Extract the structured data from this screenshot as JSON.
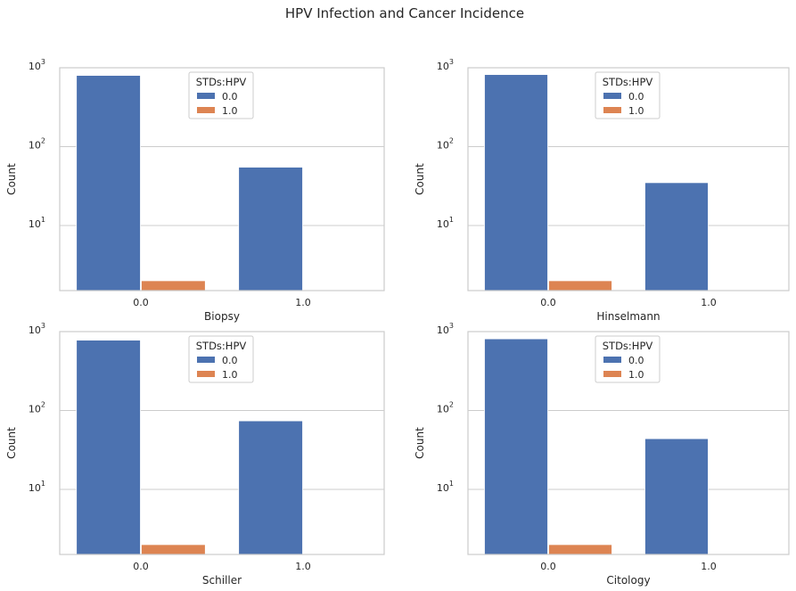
{
  "figure": {
    "title": "HPV Infection and Cancer Incidence"
  },
  "chart_data": [
    {
      "type": "bar",
      "xlabel": "Biopsy",
      "ylabel": "Count",
      "yscale": "log",
      "ylim": [
        1.5,
        1000
      ],
      "ytick_base": "10",
      "yticks": [
        {
          "value": 10,
          "exp": "1"
        },
        {
          "value": 100,
          "exp": "2"
        },
        {
          "value": 1000,
          "exp": "3"
        }
      ],
      "grid": true,
      "categories": [
        "0.0",
        "1.0"
      ],
      "legend": {
        "title": "STDs:HPV",
        "position": "upper center"
      },
      "series": [
        {
          "name": "0.0",
          "color": "#4c72b0",
          "values": [
            800,
            55
          ]
        },
        {
          "name": "1.0",
          "color": "#dd8452",
          "values": [
            2,
            0
          ]
        }
      ]
    },
    {
      "type": "bar",
      "xlabel": "Hinselmann",
      "ylabel": "Count",
      "yscale": "log",
      "ylim": [
        1.5,
        1000
      ],
      "ytick_base": "10",
      "yticks": [
        {
          "value": 10,
          "exp": "1"
        },
        {
          "value": 100,
          "exp": "2"
        },
        {
          "value": 1000,
          "exp": "3"
        }
      ],
      "grid": true,
      "categories": [
        "0.0",
        "1.0"
      ],
      "legend": {
        "title": "STDs:HPV",
        "position": "upper center"
      },
      "series": [
        {
          "name": "0.0",
          "color": "#4c72b0",
          "values": [
            820,
            35
          ]
        },
        {
          "name": "1.0",
          "color": "#dd8452",
          "values": [
            2,
            0
          ]
        }
      ]
    },
    {
      "type": "bar",
      "xlabel": "Schiller",
      "ylabel": "Count",
      "yscale": "log",
      "ylim": [
        1.5,
        1000
      ],
      "ytick_base": "10",
      "yticks": [
        {
          "value": 10,
          "exp": "1"
        },
        {
          "value": 100,
          "exp": "2"
        },
        {
          "value": 1000,
          "exp": "3"
        }
      ],
      "grid": true,
      "categories": [
        "0.0",
        "1.0"
      ],
      "legend": {
        "title": "STDs:HPV",
        "position": "upper center"
      },
      "series": [
        {
          "name": "0.0",
          "color": "#4c72b0",
          "values": [
            780,
            74
          ]
        },
        {
          "name": "1.0",
          "color": "#dd8452",
          "values": [
            2,
            0
          ]
        }
      ]
    },
    {
      "type": "bar",
      "xlabel": "Citology",
      "ylabel": "Count",
      "yscale": "log",
      "ylim": [
        1.5,
        1000
      ],
      "ytick_base": "10",
      "yticks": [
        {
          "value": 10,
          "exp": "1"
        },
        {
          "value": 100,
          "exp": "2"
        },
        {
          "value": 1000,
          "exp": "3"
        }
      ],
      "grid": true,
      "categories": [
        "0.0",
        "1.0"
      ],
      "legend": {
        "title": "STDs:HPV",
        "position": "upper center"
      },
      "series": [
        {
          "name": "0.0",
          "color": "#4c72b0",
          "values": [
            810,
            44
          ]
        },
        {
          "name": "1.0",
          "color": "#dd8452",
          "values": [
            2,
            0
          ]
        }
      ]
    }
  ]
}
